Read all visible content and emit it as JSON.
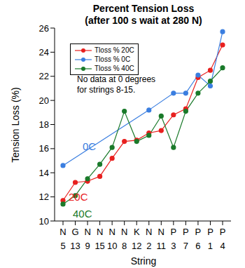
{
  "chart_data": {
    "type": "line",
    "title": "Percent Tension Loss",
    "subtitle": "(after 100 s wait at 280 N)",
    "x_label": "String",
    "y_label": "Tension Loss (%)",
    "categories": [
      "5",
      "13",
      "9",
      "15",
      "10",
      "8",
      "12",
      "2",
      "11",
      "3",
      "7",
      "6",
      "1",
      "4"
    ],
    "string_types": [
      "N",
      "G",
      "N",
      "N",
      "N",
      "N",
      "K",
      "N",
      "N",
      "P",
      "P",
      "P",
      "P",
      "P"
    ],
    "series": [
      {
        "name": "Tloss % 20C",
        "label": "20C",
        "color": "#e8201f",
        "marker": "circle",
        "values": [
          11.7,
          13.2,
          13.3,
          13.7,
          15.2,
          16.6,
          16.7,
          17.3,
          17.5,
          18.8,
          19.3,
          21.9,
          22.5,
          24.6
        ]
      },
      {
        "name": "Tloss % 0C",
        "label": "0C",
        "color": "#3a7ee0",
        "marker": "circle",
        "values": [
          14.6,
          null,
          null,
          null,
          null,
          null,
          null,
          19.2,
          null,
          20.6,
          20.6,
          22.1,
          21.2,
          25.7
        ]
      },
      {
        "name": "Tloss % 40C",
        "label": "40C",
        "color": "#1a7a2a",
        "marker": "circle",
        "values": [
          11.4,
          12.1,
          13.5,
          14.7,
          16.1,
          19.1,
          16.6,
          17.1,
          18.7,
          16.1,
          19.1,
          20.6,
          21.6,
          22.7
        ]
      }
    ],
    "annotation": [
      "No data at 0 degrees",
      "for strings 8-15."
    ],
    "ylim": [
      10,
      26
    ],
    "yticks": [
      10,
      12,
      14,
      16,
      18,
      20,
      22,
      24,
      26
    ],
    "legend": "upper left",
    "grid": false
  }
}
